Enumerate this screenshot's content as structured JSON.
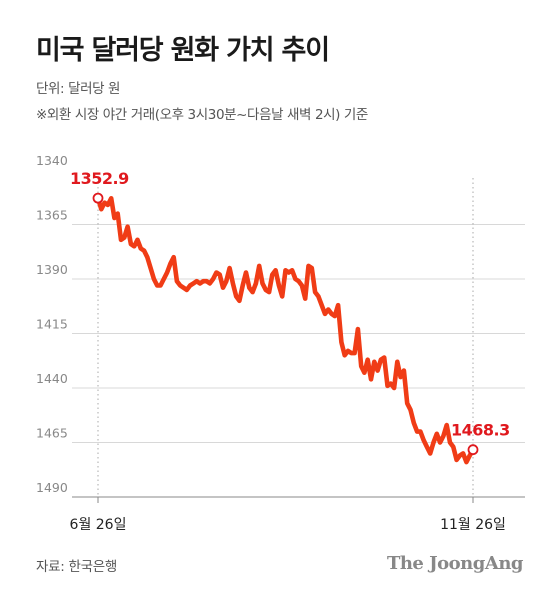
{
  "header": {
    "title": "미국 달러당 원화 가치 추이",
    "unit": "단위: 달러당 원",
    "note": "※외환 시장 야간 거래(오후 3시30분~다음날 새벽 2시) 기준"
  },
  "footer": {
    "source": "자료: 한국은행",
    "logo": "The JoongAng"
  },
  "colors": {
    "line": "#f03c16",
    "highlight": "#e0191e",
    "grid": "#d8d8d8",
    "axis": "#999999"
  },
  "chart_data": {
    "type": "line",
    "title": "미국 달러당 원화 가치 추이",
    "xlabel": "",
    "ylabel": "",
    "y_inverted": true,
    "ylim": [
      1340,
      1490
    ],
    "yticks": [
      1340,
      1365,
      1390,
      1415,
      1440,
      1465,
      1490
    ],
    "x_tick_labels": [
      "6월 26일",
      "11월 26일"
    ],
    "grid": true,
    "start_label": "1352.9",
    "end_label": "1468.3",
    "series": [
      {
        "name": "",
        "values": [
          1352.9,
          1358,
          1355,
          1356,
          1353,
          1362,
          1360,
          1372,
          1371,
          1366,
          1374,
          1375,
          1372,
          1376,
          1377,
          1380,
          1385,
          1390,
          1393,
          1393,
          1390,
          1387,
          1383,
          1380,
          1391,
          1393,
          1394,
          1395,
          1393,
          1392,
          1391,
          1392,
          1391,
          1391,
          1392,
          1390,
          1387,
          1388,
          1394,
          1391,
          1385,
          1392,
          1398,
          1400,
          1393,
          1387,
          1394,
          1396,
          1392,
          1384,
          1392,
          1395,
          1396,
          1388,
          1386,
          1393,
          1398,
          1386,
          1387,
          1386,
          1390,
          1391,
          1393,
          1399,
          1384,
          1385,
          1396,
          1398,
          1402,
          1406,
          1404,
          1406,
          1407,
          1402,
          1419,
          1425,
          1423,
          1424,
          1424,
          1413,
          1430,
          1433,
          1427,
          1436,
          1428,
          1432,
          1427,
          1426,
          1439,
          1438,
          1440,
          1428,
          1435,
          1432,
          1447,
          1450,
          1456,
          1460,
          1460,
          1464,
          1467,
          1470,
          1465,
          1461,
          1465,
          1462,
          1457,
          1465,
          1467,
          1473,
          1471,
          1470,
          1474,
          1471,
          1468.3
        ]
      }
    ]
  }
}
